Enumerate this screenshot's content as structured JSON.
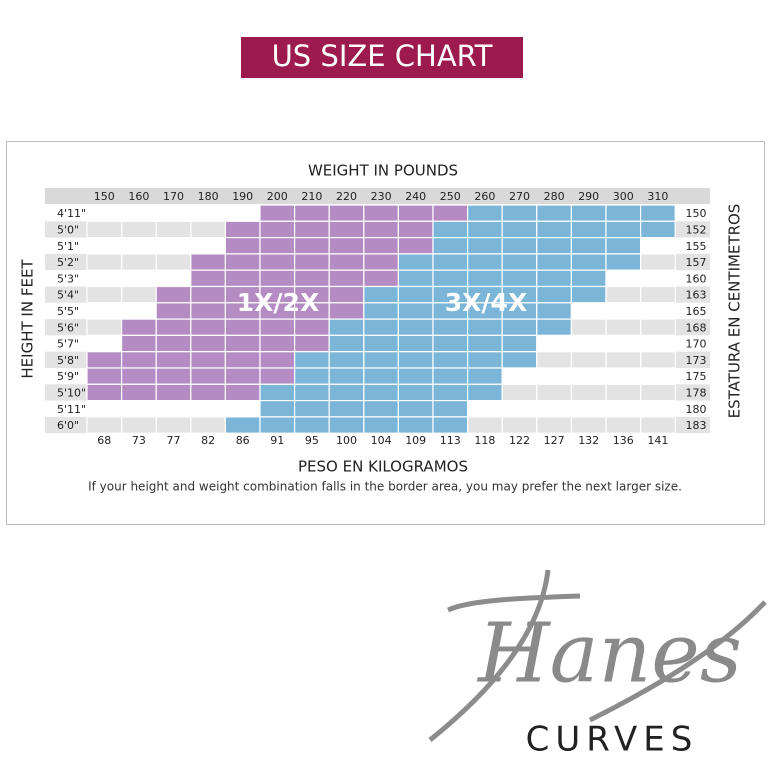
{
  "header": {
    "title": "US SIZE CHART"
  },
  "table": {
    "top_label": "WEIGHT IN POUNDS",
    "left_label": "HEIGHT IN FEET",
    "right_label": "ESTATURA EN CENTIMETROS",
    "bottom_label": "PESO EN KILOGRAMOS",
    "weights_lb": [
      150,
      160,
      170,
      180,
      190,
      200,
      210,
      220,
      230,
      240,
      250,
      260,
      270,
      280,
      290,
      300,
      310
    ],
    "weights_kg": [
      68,
      73,
      77,
      82,
      86,
      91,
      95,
      100,
      104,
      109,
      113,
      118,
      122,
      127,
      132,
      136,
      141
    ],
    "heights_ft": [
      "4'11\"",
      "5'0\"",
      "5'1\"",
      "5'2\"",
      "5'3\"",
      "5'4\"",
      "5'5\"",
      "5'6\"",
      "5'7\"",
      "5'8\"",
      "5'9\"",
      "5'10\"",
      "5'11\"",
      "6'0\""
    ],
    "heights_cm": [
      150,
      152,
      155,
      157,
      160,
      163,
      165,
      168,
      170,
      173,
      175,
      178,
      180,
      183
    ],
    "zones": [
      "1X/2X",
      "3X/4X"
    ],
    "note": "If your height and weight combination falls in the border area, you may prefer the next larger size."
  },
  "brand": {
    "logo": "Hanes",
    "line": "CURVES"
  }
}
